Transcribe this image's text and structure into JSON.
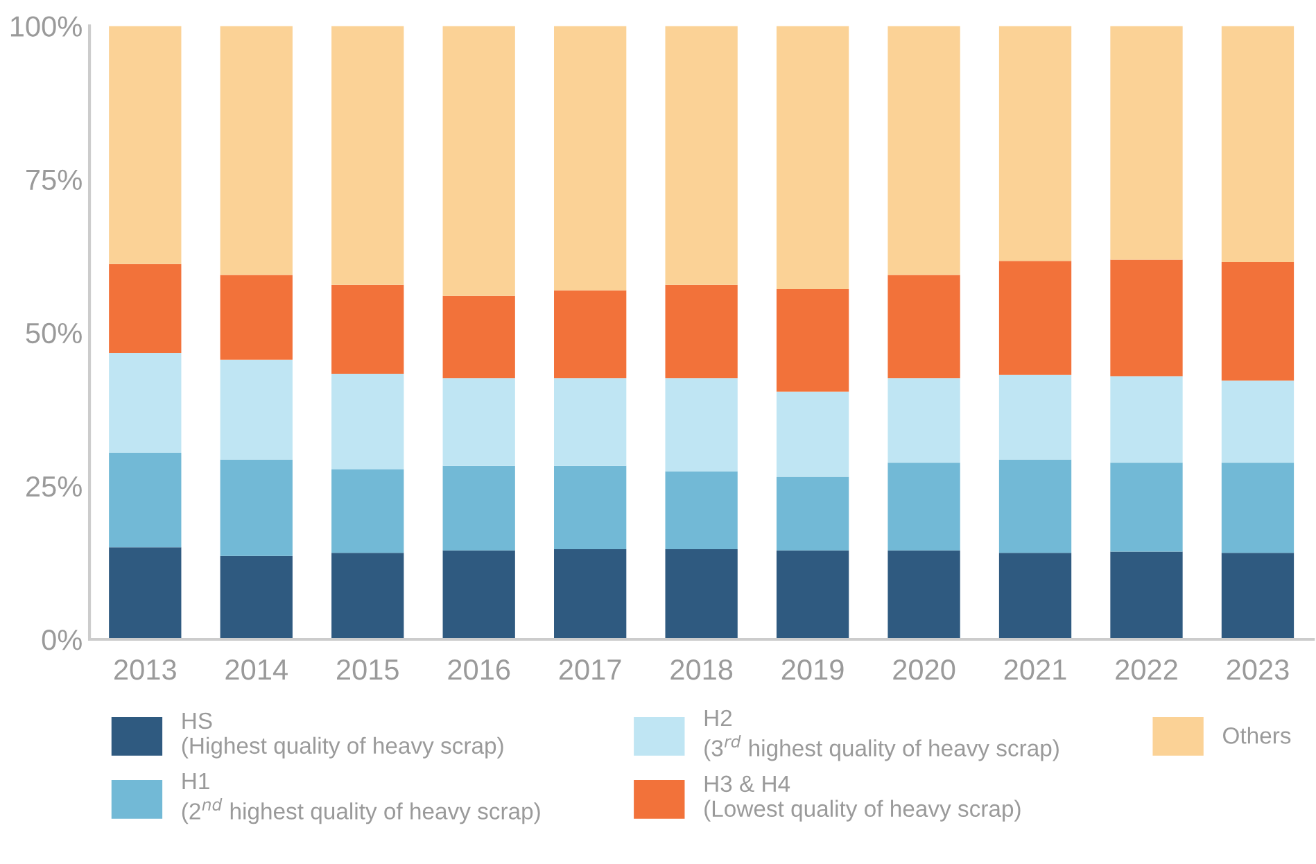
{
  "chart_data": {
    "type": "bar",
    "stacked": true,
    "categories": [
      "2013",
      "2014",
      "2015",
      "2016",
      "2017",
      "2018",
      "2019",
      "2020",
      "2021",
      "2022",
      "2023"
    ],
    "series": [
      {
        "name": "HS\n(Highest quality of heavy scrap)",
        "color": "#2f5a80",
        "values": [
          15.0,
          13.6,
          14.1,
          14.5,
          14.7,
          14.7,
          14.5,
          14.5,
          14.1,
          14.3,
          14.1
        ]
      },
      {
        "name": "H1\n(2$^{nd}$ highest quality of heavy scrap)",
        "color": "#72b9d6",
        "values": [
          15.4,
          15.7,
          13.6,
          13.8,
          13.6,
          12.7,
          12.0,
          14.3,
          15.2,
          14.5,
          14.7
        ]
      },
      {
        "name": "H2\n(3$^{rd}$ highest quality of heavy scrap)",
        "color": "#bfe5f3",
        "values": [
          16.3,
          16.3,
          15.6,
          14.3,
          14.3,
          15.2,
          13.9,
          13.8,
          13.8,
          14.1,
          13.4
        ]
      },
      {
        "name": "H3 & H4\n(Lowest quality of heavy scrap)",
        "color": "#f2723a",
        "values": [
          14.5,
          13.8,
          14.5,
          13.4,
          14.3,
          15.2,
          16.7,
          16.8,
          18.6,
          19.0,
          19.3
        ]
      },
      {
        "name": "Others",
        "color": "#fbd296",
        "values": [
          38.8,
          40.6,
          42.2,
          44.0,
          43.1,
          42.2,
          42.9,
          40.6,
          38.3,
          38.1,
          38.5
        ]
      }
    ],
    "ylim": [
      0,
      100
    ],
    "yticks": [
      {
        "value": 0,
        "label": "0%"
      },
      {
        "value": 25,
        "label": "25%"
      },
      {
        "value": 50,
        "label": "50%"
      },
      {
        "value": 75,
        "label": "75%"
      },
      {
        "value": 100,
        "label": "100%"
      }
    ],
    "grid": false,
    "legend": "bottom"
  }
}
